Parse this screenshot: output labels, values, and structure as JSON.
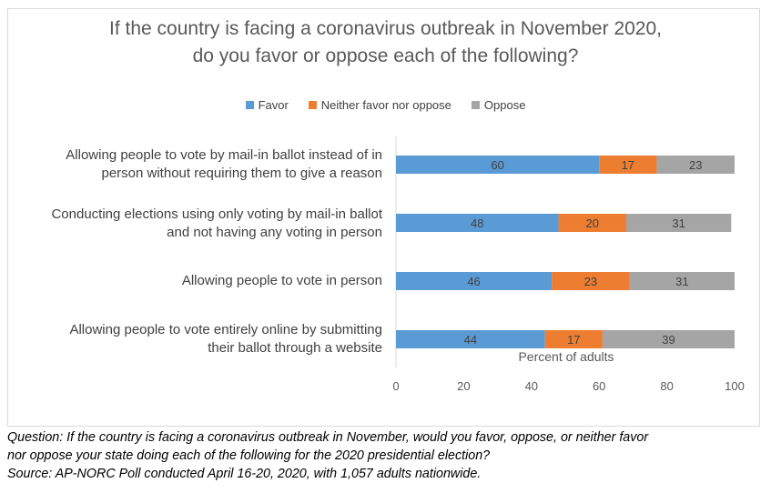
{
  "chart_data": {
    "type": "bar",
    "orientation": "horizontal-stacked",
    "title_lines": [
      "If the country is facing a coronavirus outbreak in November 2020,",
      "do you favor or oppose each of the following?"
    ],
    "xlabel": "Percent of adults",
    "xlim": [
      0,
      100
    ],
    "xticks": [
      "0",
      "20",
      "40",
      "60",
      "80",
      "100"
    ],
    "legend_position": "top",
    "categories": [
      [
        "Allowing people to vote by mail-in ballot instead of in",
        "person without requiring them to give a reason"
      ],
      [
        "Conducting elections using only voting by mail-in ballot",
        "and not having any voting in person"
      ],
      [
        "Allowing people to vote in person"
      ],
      [
        "Allowing people to vote entirely online by submitting",
        "their ballot through a website"
      ]
    ],
    "series": [
      {
        "name": "Favor",
        "color": "#5b9bd5",
        "values": [
          60,
          48,
          46,
          44
        ]
      },
      {
        "name": "Neither favor nor oppose",
        "color": "#ed7d31",
        "values": [
          17,
          20,
          23,
          17
        ]
      },
      {
        "name": "Oppose",
        "color": "#a5a5a5",
        "values": [
          23,
          31,
          31,
          39
        ]
      }
    ]
  },
  "footer": {
    "question_line1": "Question: If the country is facing a coronavirus outbreak in November, would you favor, oppose, or neither favor",
    "question_line2": "nor oppose your state doing each of the following for the 2020 presidential election?",
    "source": "Source: AP-NORC Poll conducted April 16-20, 2020, with 1,057 adults nationwide."
  }
}
